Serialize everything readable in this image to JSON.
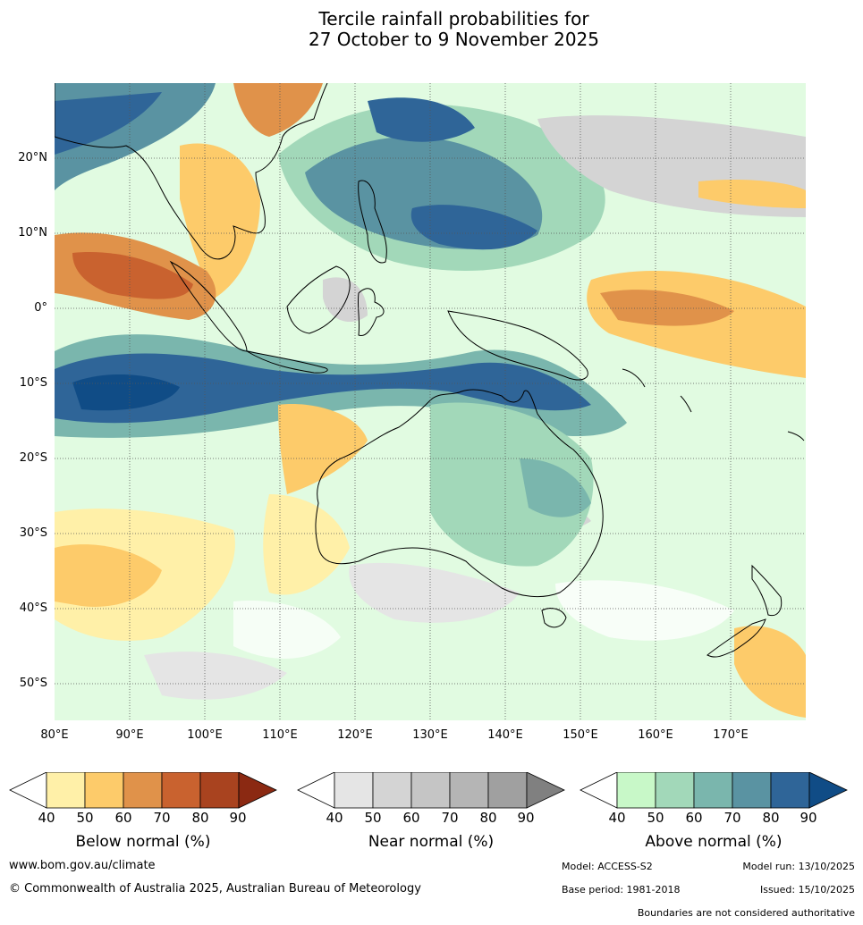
{
  "title": {
    "line1": "Tercile rainfall probabilities for",
    "line2": "27 October to 9 November 2025"
  },
  "map": {
    "lat_labels": [
      "20°N",
      "10°N",
      "0°",
      "10°S",
      "20°S",
      "30°S",
      "40°S",
      "50°S"
    ],
    "lon_labels": [
      "80°E",
      "90°E",
      "100°E",
      "110°E",
      "120°E",
      "130°E",
      "140°E",
      "150°E",
      "160°E",
      "170°E"
    ]
  },
  "legends": [
    {
      "name": "below",
      "label": "Below normal (%)",
      "ticks": [
        "40",
        "50",
        "60",
        "70",
        "80",
        "90"
      ],
      "colors": [
        "#fff0a8",
        "#fdcb6a",
        "#e0924a",
        "#c9622f",
        "#a9431f",
        "#8b2912"
      ]
    },
    {
      "name": "near",
      "label": "Near normal (%)",
      "ticks": [
        "40",
        "50",
        "60",
        "70",
        "80",
        "90"
      ],
      "colors": [
        "#e5e5e5",
        "#d4d4d4",
        "#c5c5c5",
        "#b5b5b5",
        "#a0a0a0",
        "#808080"
      ]
    },
    {
      "name": "above",
      "label": "Above normal (%)",
      "ticks": [
        "40",
        "50",
        "60",
        "70",
        "80",
        "90"
      ],
      "colors": [
        "#c8f8c8",
        "#a2d8b9",
        "#7ab6ad",
        "#5a93a2",
        "#2f6598",
        "#104c86"
      ]
    }
  ],
  "footer": {
    "website": "www.bom.gov.au/climate",
    "copyright": "© Commonwealth of Australia 2025, Australian Bureau of Meteorology",
    "model": "Model: ACCESS-S2",
    "model_run": "Model run: 13/10/2025",
    "base_period": "Base period: 1981-2018",
    "issued": "Issued: 15/10/2025",
    "disclaimer": "Boundaries are not considered authoritative"
  }
}
